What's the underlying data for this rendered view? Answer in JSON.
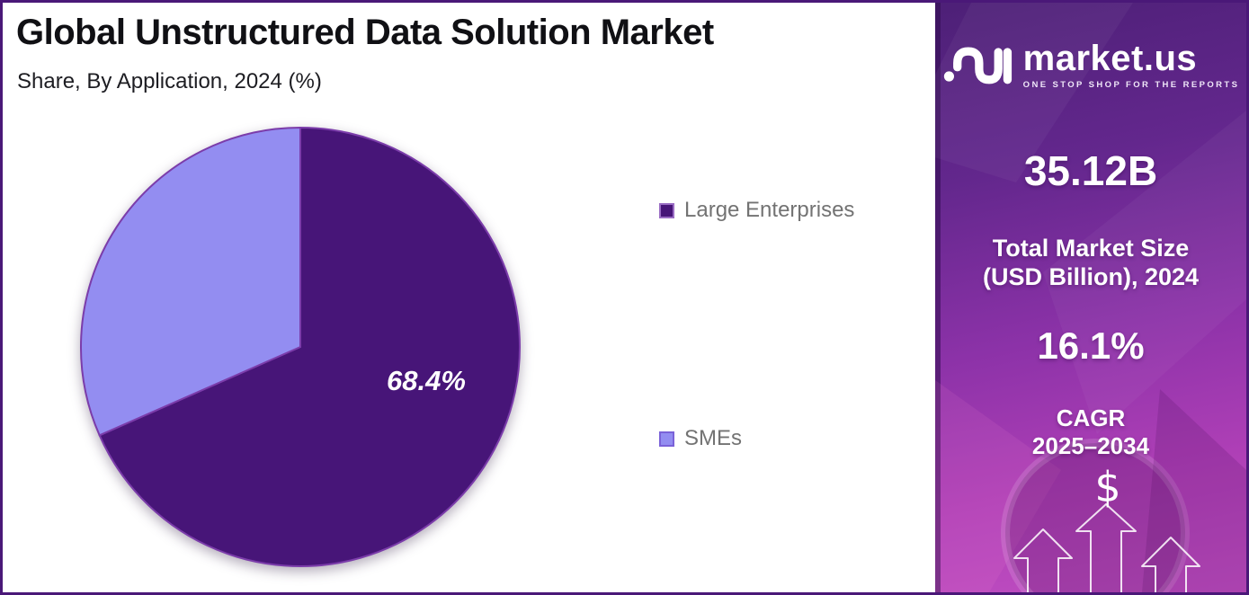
{
  "header": {
    "title": "Global Unstructured Data Solution Market",
    "subtitle": "Share, By Application, 2024 (%)"
  },
  "chart_data": {
    "type": "pie",
    "title": "Global Unstructured Data Solution Market",
    "subtitle": "Share, By Application, 2024 (%)",
    "categories": [
      "Large Enterprises",
      "SMEs"
    ],
    "values": [
      68.4,
      31.6
    ],
    "unit": "%",
    "labels": [
      "68.4%",
      ""
    ],
    "colors": [
      "#471578",
      "#938DF1"
    ],
    "slice_border_color": "#7b3caa",
    "start_angle": 0,
    "direction": "clockwise",
    "legend_position": "right"
  },
  "sidebar": {
    "brand": {
      "name": "market.us",
      "tagline": "ONE STOP SHOP FOR THE REPORTS"
    },
    "market_size": {
      "value": "35.12B",
      "label": "Total Market Size\n(USD Billion), 2024"
    },
    "cagr": {
      "value": "16.1%",
      "label": "CAGR\n2025–2034"
    },
    "dollar_symbol": "$",
    "accent_colors": {
      "gradient_top": "#4d2077",
      "gradient_bottom": "#c250c3",
      "frame_border": "#4a1878"
    }
  }
}
